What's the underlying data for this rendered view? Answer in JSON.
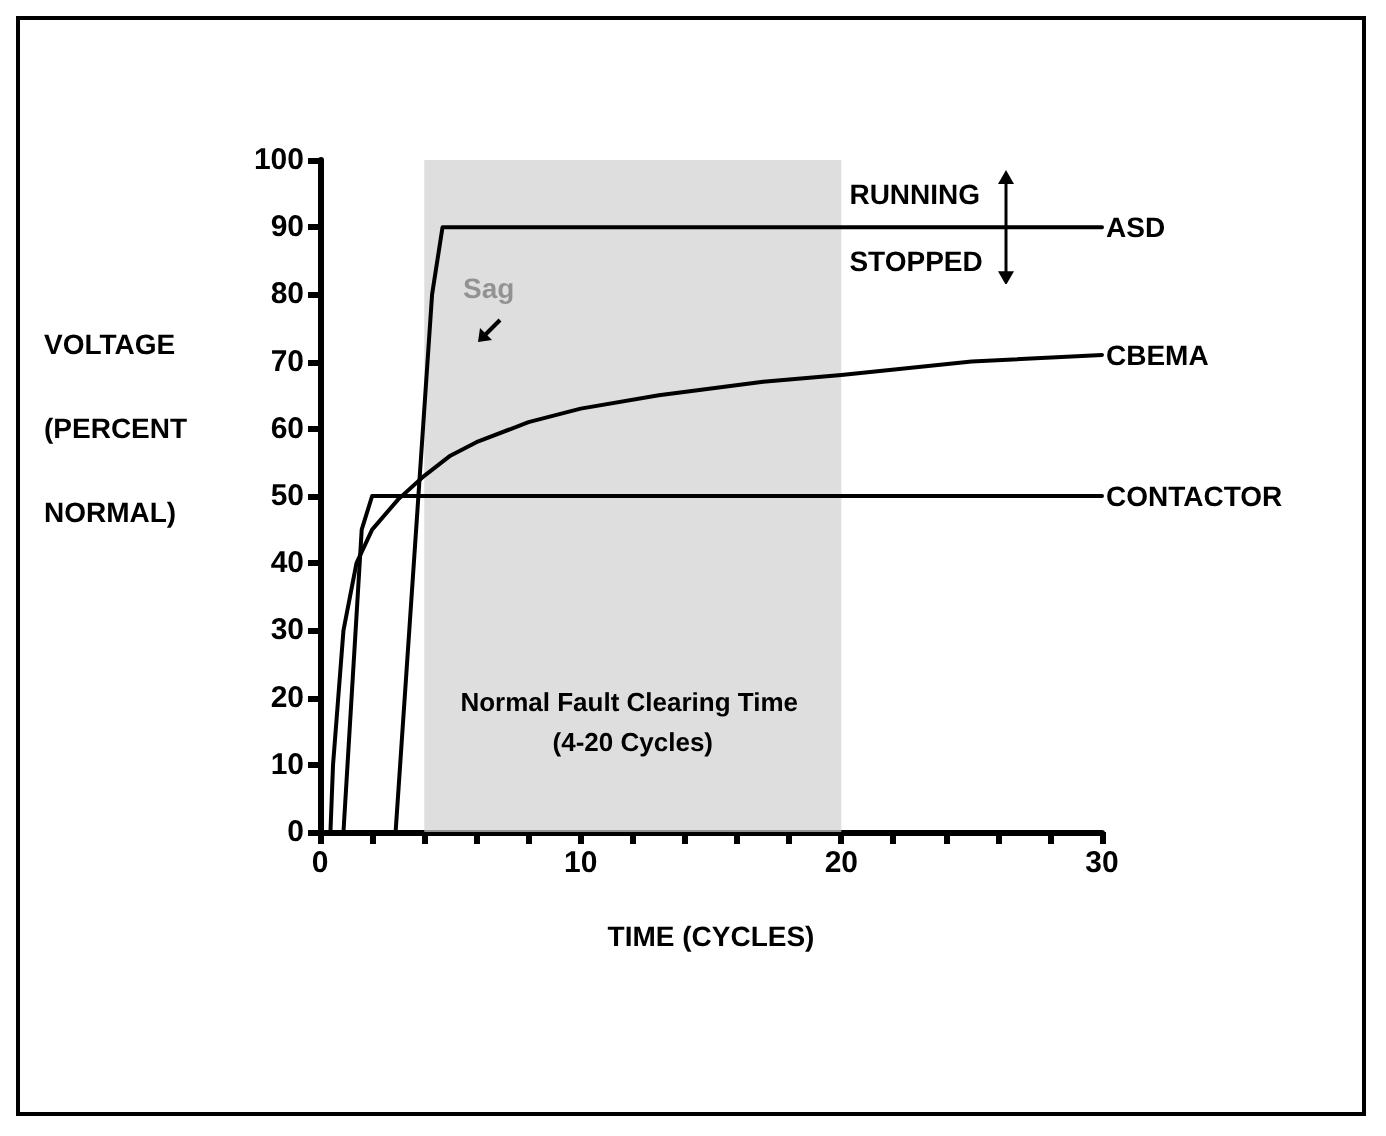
{
  "chart_data": {
    "type": "line",
    "xlabel": "TIME (CYCLES)",
    "ylabel": "VOLTAGE (PERCENT NORMAL)",
    "xlim": [
      0,
      30
    ],
    "ylim": [
      0,
      100
    ],
    "xticks": [
      0,
      {
        "value": 2,
        "label": null
      },
      {
        "value": 4,
        "label": null
      },
      {
        "value": 6,
        "label": null
      },
      {
        "value": 8,
        "label": null
      },
      10,
      {
        "value": 12,
        "label": null
      },
      {
        "value": 14,
        "label": null
      },
      {
        "value": 16,
        "label": null
      },
      {
        "value": 18,
        "label": null
      },
      20,
      {
        "value": 22,
        "label": null
      },
      {
        "value": 24,
        "label": null
      },
      {
        "value": 26,
        "label": null
      },
      {
        "value": 28,
        "label": null
      },
      30
    ],
    "yticks": [
      0,
      10,
      20,
      30,
      40,
      50,
      60,
      70,
      80,
      90,
      100
    ],
    "series": [
      {
        "name": "ASD",
        "color": "#000000",
        "x": [
          2.9,
          4.3,
          4.7,
          30
        ],
        "values": [
          0,
          80,
          90,
          90
        ]
      },
      {
        "name": "CBEMA",
        "color": "#000000",
        "x": [
          0.4,
          0.5,
          0.7,
          0.9,
          1.4,
          2,
          3,
          4,
          5,
          6,
          8,
          10,
          13,
          17,
          20,
          25,
          30
        ],
        "values": [
          0,
          10,
          20,
          30,
          40,
          45,
          49.5,
          53,
          56,
          58,
          61,
          63,
          65,
          67,
          68,
          70,
          71
        ]
      },
      {
        "name": "CONTACTOR",
        "color": "#000000",
        "x": [
          0.9,
          1.6,
          2,
          30
        ],
        "values": [
          0,
          45,
          50,
          50
        ]
      }
    ],
    "bands": [
      {
        "axis": "x",
        "from": 4,
        "to": 20,
        "label": "Normal Fault Clearing Time (4-20 Cycles)",
        "color": "#d0d0d0"
      }
    ],
    "annotations": [
      "Sag",
      "RUNNING",
      "STOPPED"
    ],
    "grid": false,
    "legend": false,
    "marker": "none",
    "line_style": "solid"
  }
}
